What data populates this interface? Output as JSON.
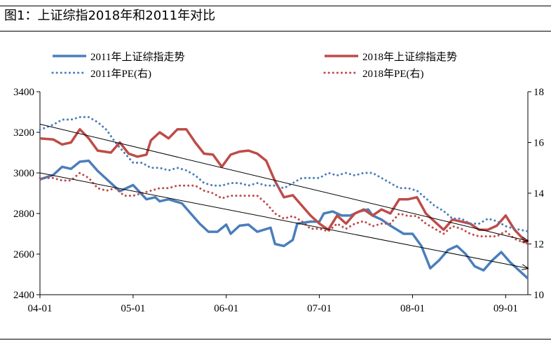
{
  "figure_title": "图1：上证综指2018年和2011年对比",
  "colors": {
    "blue": "#4a7ebb",
    "red": "#be4b48",
    "trend": "#000000"
  },
  "chart_data": {
    "type": "line",
    "title": "图1：上证综指2018年和2011年对比",
    "x_tick_labels": [
      "04-01",
      "05-01",
      "06-01",
      "07-01",
      "08-01",
      "09-01"
    ],
    "xlim": [
      0,
      110
    ],
    "x_ticks": [
      0,
      21,
      42,
      63,
      84,
      105
    ],
    "y_left": {
      "ylim": [
        2400,
        3400
      ],
      "ticks": [
        "2400",
        "2600",
        "2800",
        "3000",
        "3200",
        "3400"
      ]
    },
    "y_right": {
      "ylim": [
        10,
        18
      ],
      "ticks": [
        "10",
        "12",
        "14",
        "16",
        "18"
      ]
    },
    "grid": false,
    "legend": "top",
    "series": [
      {
        "name": "2011年上证综指走势",
        "axis": "left",
        "style": "solid",
        "color": "#4a7ebb",
        "x": [
          0,
          3,
          5,
          7,
          9,
          11,
          13,
          16,
          18,
          21,
          24,
          26,
          27,
          29,
          32,
          34,
          36,
          38,
          40,
          42,
          43,
          45,
          47,
          49,
          52,
          53,
          55,
          57,
          58,
          61,
          63,
          64,
          66,
          68,
          70,
          72,
          74,
          75,
          77,
          79,
          82,
          84,
          86,
          88,
          90,
          92,
          94,
          96,
          98,
          100,
          102,
          104,
          106,
          108,
          110
        ],
        "values": [
          2968,
          2990,
          3030,
          3020,
          3055,
          3060,
          3010,
          2950,
          2910,
          2940,
          2870,
          2880,
          2860,
          2870,
          2850,
          2800,
          2750,
          2710,
          2710,
          2745,
          2700,
          2740,
          2745,
          2710,
          2730,
          2650,
          2640,
          2670,
          2750,
          2760,
          2760,
          2800,
          2810,
          2790,
          2790,
          2810,
          2820,
          2790,
          2770,
          2740,
          2700,
          2700,
          2640,
          2530,
          2570,
          2620,
          2640,
          2600,
          2540,
          2520,
          2570,
          2610,
          2560,
          2520,
          2480
        ]
      },
      {
        "name": "2018年上证综指走势",
        "axis": "left",
        "style": "solid",
        "color": "#be4b48",
        "x": [
          0,
          3,
          5,
          7,
          9,
          11,
          13,
          16,
          18,
          20,
          22,
          24,
          25,
          27,
          29,
          31,
          33,
          35,
          37,
          39,
          41,
          43,
          45,
          47,
          49,
          51,
          53,
          55,
          57,
          59,
          61,
          63,
          65,
          67,
          69,
          71,
          73,
          75,
          77,
          79,
          81,
          83,
          85,
          87,
          89,
          91,
          93,
          95,
          97,
          99,
          101,
          103,
          105,
          107,
          110
        ],
        "values": [
          3170,
          3165,
          3140,
          3150,
          3215,
          3170,
          3110,
          3100,
          3150,
          3095,
          3080,
          3090,
          3160,
          3200,
          3170,
          3215,
          3215,
          3150,
          3095,
          3090,
          3030,
          3090,
          3105,
          3110,
          3095,
          3060,
          2960,
          2880,
          2890,
          2840,
          2790,
          2750,
          2720,
          2790,
          2750,
          2800,
          2820,
          2790,
          2820,
          2800,
          2870,
          2870,
          2880,
          2800,
          2760,
          2720,
          2770,
          2760,
          2750,
          2720,
          2720,
          2740,
          2790,
          2720,
          2650
        ]
      },
      {
        "name": "2011年PE(右)",
        "axis": "right",
        "style": "dotted",
        "color": "#4a7ebb",
        "x": [
          0,
          3,
          5,
          7,
          9,
          11,
          13,
          15,
          17,
          19,
          21,
          23,
          25,
          27,
          29,
          31,
          33,
          35,
          37,
          39,
          41,
          43,
          45,
          47,
          49,
          51,
          53,
          55,
          57,
          59,
          61,
          63,
          65,
          67,
          69,
          71,
          73,
          75,
          77,
          79,
          81,
          83,
          85,
          87,
          89,
          91,
          93,
          95,
          97,
          99,
          101,
          103,
          105,
          107,
          110
        ],
        "values": [
          16.5,
          16.7,
          16.9,
          16.9,
          17.0,
          17.0,
          16.8,
          16.5,
          16.0,
          15.6,
          15.2,
          15.2,
          15.0,
          15.0,
          14.9,
          15.0,
          14.9,
          14.7,
          14.4,
          14.3,
          14.3,
          14.4,
          14.4,
          14.3,
          14.4,
          14.3,
          14.3,
          14.2,
          14.4,
          14.6,
          14.6,
          14.6,
          14.8,
          14.7,
          14.8,
          14.7,
          14.8,
          14.8,
          14.6,
          14.4,
          14.2,
          14.2,
          14.1,
          13.8,
          13.5,
          13.3,
          13.0,
          13.0,
          12.8,
          12.8,
          13.0,
          12.9,
          12.7,
          12.6,
          12.5
        ]
      },
      {
        "name": "2018年PE(右)",
        "axis": "right",
        "style": "dotted",
        "color": "#be4b48",
        "x": [
          0,
          3,
          5,
          7,
          9,
          11,
          13,
          15,
          17,
          19,
          21,
          23,
          25,
          27,
          29,
          31,
          33,
          35,
          37,
          39,
          41,
          43,
          45,
          47,
          49,
          51,
          53,
          55,
          57,
          59,
          61,
          63,
          65,
          67,
          69,
          71,
          73,
          75,
          77,
          79,
          81,
          83,
          85,
          87,
          89,
          91,
          93,
          95,
          97,
          99,
          101,
          103,
          105,
          107,
          110
        ],
        "values": [
          14.6,
          14.6,
          14.5,
          14.5,
          14.8,
          14.6,
          14.2,
          14.1,
          14.2,
          13.9,
          13.9,
          14.0,
          14.1,
          14.2,
          14.2,
          14.3,
          14.3,
          14.3,
          14.1,
          14.0,
          13.8,
          13.9,
          13.9,
          13.9,
          13.9,
          13.6,
          13.2,
          13.0,
          13.1,
          12.9,
          12.6,
          12.6,
          12.5,
          12.8,
          12.6,
          12.8,
          12.9,
          12.7,
          12.8,
          12.8,
          13.2,
          13.1,
          13.1,
          12.8,
          12.6,
          12.4,
          12.7,
          12.6,
          12.4,
          12.3,
          12.3,
          12.3,
          12.5,
          12.2,
          12.0
        ]
      },
      {
        "name": "",
        "axis": "left",
        "style": "trend-arrow",
        "color": "#000000",
        "x": [
          0,
          110
        ],
        "values": [
          3240,
          2665
        ]
      },
      {
        "name": "",
        "axis": "left",
        "style": "trend-arrow",
        "color": "#000000",
        "x": [
          0,
          110
        ],
        "values": [
          3000,
          2530
        ]
      }
    ]
  }
}
